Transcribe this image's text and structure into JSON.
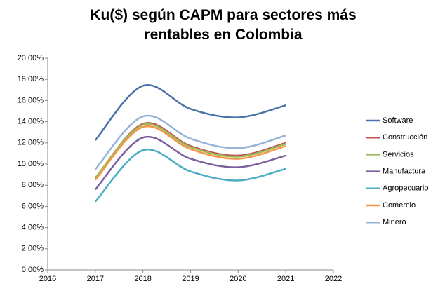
{
  "chart_data": {
    "type": "line",
    "title": "Ku($) según CAPM para sectores más rentables en Colombia",
    "x": [
      2017,
      2018,
      2019,
      2020,
      2021
    ],
    "xlim": [
      2016,
      2022
    ],
    "xticks": [
      2016,
      2017,
      2018,
      2019,
      2020,
      2021,
      2022
    ],
    "ylim": [
      0,
      20
    ],
    "yticks": [
      {
        "value": 0,
        "label": "0,00%"
      },
      {
        "value": 2,
        "label": "2,00%"
      },
      {
        "value": 4,
        "label": "4,00%"
      },
      {
        "value": 6,
        "label": "6,00%"
      },
      {
        "value": 8,
        "label": "8,00%"
      },
      {
        "value": 10,
        "label": "10,00%"
      },
      {
        "value": 12,
        "label": "12,00%"
      },
      {
        "value": 14,
        "label": "14,00%"
      },
      {
        "value": 16,
        "label": "16,00%"
      },
      {
        "value": 18,
        "label": "18,00%"
      },
      {
        "value": 20,
        "label": "20,00%"
      }
    ],
    "grid": false,
    "smooth": true,
    "legend": "right",
    "series": [
      {
        "name": "Software",
        "color": "#4a72a8",
        "values": [
          12.25,
          17.4,
          15.2,
          14.4,
          15.55
        ]
      },
      {
        "name": "Construcción",
        "color": "#c0504d",
        "values": [
          8.6,
          13.8,
          11.7,
          10.8,
          12.0
        ]
      },
      {
        "name": "Servicios",
        "color": "#9bbb59",
        "values": [
          8.7,
          13.7,
          11.6,
          10.7,
          11.9
        ]
      },
      {
        "name": "Manufactura",
        "color": "#7d5fa0",
        "values": [
          7.6,
          12.5,
          10.5,
          9.7,
          10.8
        ]
      },
      {
        "name": "Agropecuario",
        "color": "#4bacc6",
        "values": [
          6.45,
          11.3,
          9.3,
          8.45,
          9.55
        ]
      },
      {
        "name": "Comercio",
        "color": "#f79646",
        "values": [
          8.5,
          13.5,
          11.4,
          10.5,
          11.7
        ]
      },
      {
        "name": "Minero",
        "color": "#95b3d7",
        "values": [
          9.5,
          14.5,
          12.4,
          11.5,
          12.7
        ]
      }
    ]
  }
}
